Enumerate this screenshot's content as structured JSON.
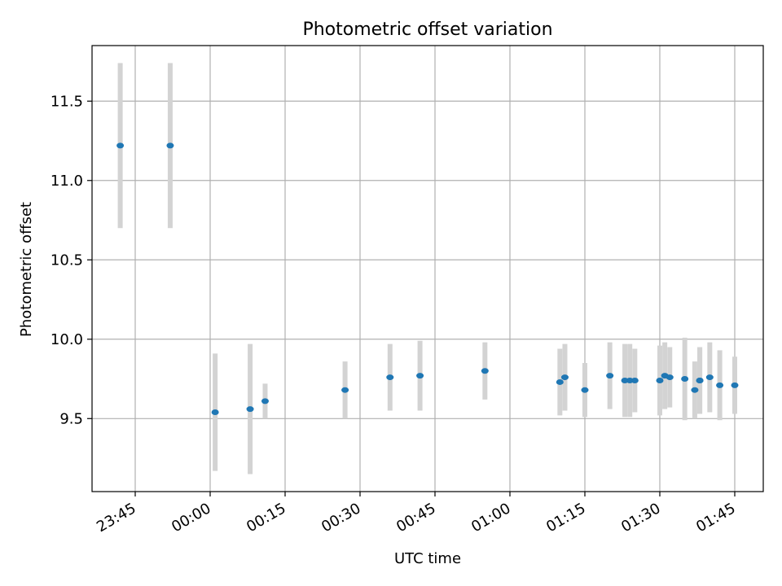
{
  "chart_data": {
    "type": "scatter",
    "title": "Photometric offset variation",
    "xlabel": "UTC time",
    "ylabel": "Photometric offset",
    "grid": true,
    "x_ticks": [
      "23:45",
      "00:00",
      "00:15",
      "00:30",
      "00:45",
      "01:00",
      "01:15",
      "01:30",
      "01:45"
    ],
    "y_ticks": [
      "9.5",
      "10.0",
      "10.5",
      "11.0",
      "11.5"
    ],
    "ylim": [
      9.04,
      11.85
    ],
    "marker_color": "#1f77b4",
    "errorbar_color": "#d3d3d3",
    "points": [
      {
        "time": "23:42",
        "y": 11.22,
        "err": 0.52
      },
      {
        "time": "23:52",
        "y": 11.22,
        "err": 0.52
      },
      {
        "time": "00:01",
        "y": 9.54,
        "err": 0.37
      },
      {
        "time": "00:08",
        "y": 9.56,
        "err": 0.41
      },
      {
        "time": "00:11",
        "y": 9.61,
        "err": 0.11
      },
      {
        "time": "00:27",
        "y": 9.68,
        "err": 0.18
      },
      {
        "time": "00:36",
        "y": 9.76,
        "err": 0.21
      },
      {
        "time": "00:42",
        "y": 9.77,
        "err": 0.22
      },
      {
        "time": "00:55",
        "y": 9.8,
        "err": 0.18
      },
      {
        "time": "01:10",
        "y": 9.73,
        "err": 0.21
      },
      {
        "time": "01:11",
        "y": 9.76,
        "err": 0.21
      },
      {
        "time": "01:15",
        "y": 9.68,
        "err": 0.17
      },
      {
        "time": "01:20",
        "y": 9.77,
        "err": 0.21
      },
      {
        "time": "01:23",
        "y": 9.74,
        "err": 0.23
      },
      {
        "time": "01:24",
        "y": 9.74,
        "err": 0.23
      },
      {
        "time": "01:25",
        "y": 9.74,
        "err": 0.2
      },
      {
        "time": "01:30",
        "y": 9.74,
        "err": 0.22
      },
      {
        "time": "01:31",
        "y": 9.77,
        "err": 0.21
      },
      {
        "time": "01:32",
        "y": 9.76,
        "err": 0.19
      },
      {
        "time": "01:35",
        "y": 9.75,
        "err": 0.26
      },
      {
        "time": "01:37",
        "y": 9.68,
        "err": 0.18
      },
      {
        "time": "01:38",
        "y": 9.74,
        "err": 0.21
      },
      {
        "time": "01:38",
        "y": 9.74,
        "err": 0.21
      },
      {
        "time": "01:40",
        "y": 9.76,
        "err": 0.22
      },
      {
        "time": "01:42",
        "y": 9.71,
        "err": 0.22
      },
      {
        "time": "01:45",
        "y": 9.71,
        "err": 0.18
      }
    ]
  }
}
